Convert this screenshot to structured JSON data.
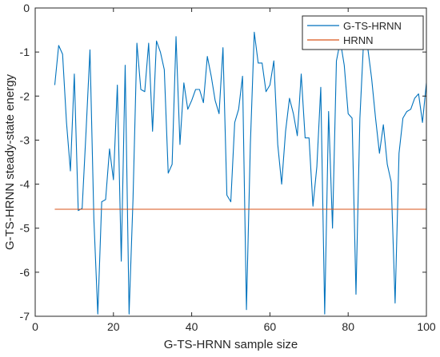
{
  "chart_data": {
    "type": "line",
    "title": "",
    "xlabel": "G-TS-HRNN sample size",
    "ylabel": "G-TS-HRNN steady-state energy",
    "xlim": [
      0,
      100
    ],
    "ylim": [
      -7,
      0
    ],
    "xticks": [
      0,
      20,
      40,
      60,
      80,
      100
    ],
    "yticks": [
      -7,
      -6,
      -5,
      -4,
      -3,
      -2,
      -1,
      0
    ],
    "grid": false,
    "legend_position": "top-right",
    "series": [
      {
        "name": "G-TS-HRNN",
        "color": "#0072BD",
        "x": [
          5,
          6,
          7,
          8,
          9,
          10,
          11,
          12,
          13,
          14,
          15,
          16,
          17,
          18,
          19,
          20,
          21,
          22,
          23,
          24,
          25,
          26,
          27,
          28,
          29,
          30,
          31,
          32,
          33,
          34,
          35,
          36,
          37,
          38,
          39,
          40,
          41,
          42,
          43,
          44,
          45,
          46,
          47,
          48,
          49,
          50,
          51,
          52,
          53,
          54,
          55,
          56,
          57,
          58,
          59,
          60,
          61,
          62,
          63,
          64,
          65,
          66,
          67,
          68,
          69,
          70,
          71,
          72,
          73,
          74,
          75,
          76,
          77,
          78,
          79,
          80,
          81,
          82,
          83,
          84,
          85,
          86,
          87,
          88,
          89,
          90,
          91,
          92,
          93,
          94,
          95,
          96,
          97,
          98,
          99,
          100
        ],
        "y": [
          -1.75,
          -0.85,
          -1.05,
          -2.6,
          -3.7,
          -1.5,
          -4.6,
          -4.55,
          -2.8,
          -0.95,
          -4.8,
          -6.95,
          -4.4,
          -4.35,
          -3.2,
          -3.9,
          -1.75,
          -5.75,
          -1.3,
          -6.95,
          -4.35,
          -0.8,
          -1.85,
          -1.9,
          -0.8,
          -2.8,
          -0.75,
          -1.0,
          -1.4,
          -3.75,
          -3.55,
          -0.65,
          -3.1,
          -1.7,
          -2.3,
          -2.1,
          -1.85,
          -1.85,
          -2.15,
          -1.1,
          -1.55,
          -2.1,
          -2.4,
          -0.9,
          -4.25,
          -4.4,
          -2.6,
          -2.3,
          -1.55,
          -6.85,
          -3.1,
          -0.55,
          -1.25,
          -1.25,
          -1.9,
          -1.75,
          -1.2,
          -3.1,
          -4.0,
          -2.8,
          -2.05,
          -2.4,
          -2.9,
          -1.5,
          -2.95,
          -2.95,
          -4.5,
          -3.6,
          -1.8,
          -6.95,
          -2.35,
          -5.0,
          -1.2,
          -0.75,
          -1.3,
          -2.4,
          -2.5,
          -6.5,
          -2.5,
          -0.65,
          -0.9,
          -1.6,
          -2.5,
          -3.3,
          -2.65,
          -3.55,
          -3.95,
          -6.7,
          -3.3,
          -2.5,
          -2.35,
          -2.3,
          -2.05,
          -1.95,
          -2.6,
          -1.7
        ]
      },
      {
        "name": "HRNN",
        "color": "#D95319",
        "x": [
          5,
          100
        ],
        "y": [
          -4.57,
          -4.57
        ]
      }
    ]
  }
}
